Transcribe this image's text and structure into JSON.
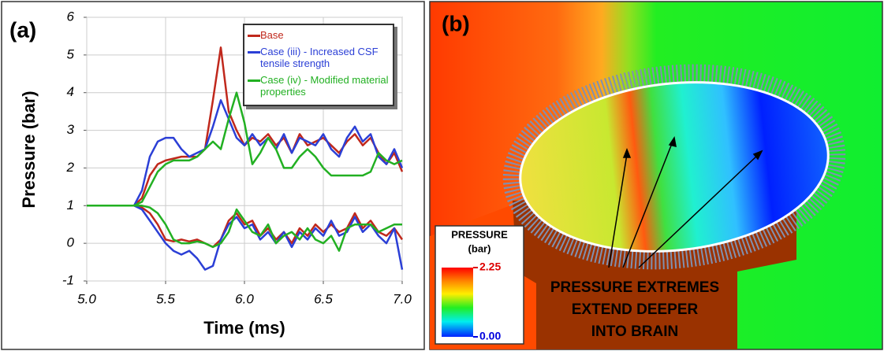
{
  "chart_data": {
    "type": "line",
    "panel_label": "(a)",
    "xlabel": "Time (ms)",
    "ylabel": "Pressure (bar)",
    "x": [
      5,
      5.05,
      5.1,
      5.15,
      5.2,
      5.25,
      5.3,
      5.35,
      5.4,
      5.45,
      5.5,
      5.55,
      5.6,
      5.65,
      5.7,
      5.75,
      5.8,
      5.85,
      5.9,
      5.95,
      6,
      6.05,
      6.1,
      6.15,
      6.2,
      6.25,
      6.3,
      6.35,
      6.4,
      6.45,
      6.5,
      6.55,
      6.6,
      6.65,
      6.7,
      6.75,
      6.8,
      6.85,
      6.9,
      6.95,
      7
    ],
    "xlim": [
      5,
      7
    ],
    "ylim": [
      -1,
      6
    ],
    "xticks": [
      {
        "value": 5,
        "label": "5.0"
      },
      {
        "value": 5.5,
        "label": "5.5"
      },
      {
        "value": 6,
        "label": "6.0"
      },
      {
        "value": 6.5,
        "label": "6.5"
      },
      {
        "value": 7,
        "label": "7.0"
      }
    ],
    "yticks": [
      -1,
      0,
      1,
      2,
      3,
      4,
      5,
      6
    ],
    "grid": true,
    "legend": "top-right",
    "series": [
      {
        "name": "Base",
        "color": "#c0281c",
        "values": [
          1,
          1,
          1,
          1,
          1,
          1,
          1,
          1.2,
          1.8,
          2.1,
          2.2,
          2.25,
          2.3,
          2.3,
          2.3,
          2.5,
          3.8,
          5.2,
          3.5,
          3.0,
          2.6,
          2.8,
          2.7,
          2.9,
          2.6,
          2.8,
          2.4,
          2.9,
          2.6,
          2.7,
          2.8,
          2.6,
          2.4,
          2.7,
          2.9,
          2.6,
          2.8,
          2.4,
          2.1,
          2.4,
          1.9
        ]
      },
      {
        "name": "Case (iii) - Increased CSF tensile strength",
        "color": "#2b3fd6",
        "values": [
          1,
          1,
          1,
          1,
          1,
          1,
          1,
          1.4,
          2.3,
          2.7,
          2.8,
          2.8,
          2.5,
          2.3,
          2.4,
          2.5,
          3.1,
          3.8,
          3.3,
          2.8,
          2.6,
          2.9,
          2.6,
          2.8,
          2.5,
          2.9,
          2.4,
          2.8,
          2.7,
          2.6,
          2.9,
          2.5,
          2.3,
          2.8,
          3.1,
          2.7,
          2.9,
          2.3,
          2.1,
          2.5,
          2.0
        ]
      },
      {
        "name": "Case (iv) - Modified material properties",
        "color": "#22b022",
        "values": [
          1,
          1,
          1,
          1,
          1,
          1,
          1,
          1.1,
          1.5,
          1.9,
          2.1,
          2.2,
          2.2,
          2.2,
          2.3,
          2.5,
          2.7,
          2.5,
          3.3,
          4.0,
          3.2,
          2.1,
          2.4,
          2.8,
          2.5,
          2.0,
          2.0,
          2.3,
          2.5,
          2.3,
          2.0,
          1.8,
          1.8,
          1.8,
          1.8,
          1.8,
          1.9,
          2.4,
          2.2,
          2.1,
          2.2
        ]
      },
      {
        "color": "#c0281c",
        "values": [
          1,
          1,
          1,
          1,
          1,
          1,
          1,
          0.95,
          0.8,
          0.5,
          0.1,
          0.05,
          0.1,
          0.05,
          0.1,
          0.0,
          -0.1,
          0.1,
          0.6,
          0.8,
          0.5,
          0.6,
          0.2,
          0.4,
          0.1,
          0.3,
          0.0,
          0.4,
          0.2,
          0.5,
          0.3,
          0.5,
          0.3,
          0.4,
          0.8,
          0.4,
          0.6,
          0.3,
          0.2,
          0.4,
          0.1
        ]
      },
      {
        "color": "#2b3fd6",
        "values": [
          1,
          1,
          1,
          1,
          1,
          1,
          1,
          0.9,
          0.6,
          0.3,
          0.0,
          -0.2,
          -0.3,
          -0.2,
          -0.4,
          -0.7,
          -0.6,
          0.1,
          0.5,
          0.7,
          0.4,
          0.5,
          0.1,
          0.3,
          0.0,
          0.3,
          -0.1,
          0.3,
          0.1,
          0.4,
          0.2,
          0.6,
          0.2,
          0.3,
          0.7,
          0.3,
          0.5,
          0.2,
          0.0,
          0.4,
          -0.7
        ]
      },
      {
        "color": "#22b022",
        "values": [
          1,
          1,
          1,
          1,
          1,
          1,
          1,
          1.0,
          0.95,
          0.8,
          0.5,
          0.1,
          0.0,
          0.0,
          0.05,
          0.0,
          -0.1,
          0.0,
          0.3,
          0.9,
          0.6,
          0.3,
          0.2,
          0.5,
          0.0,
          0.2,
          0.3,
          0.1,
          0.4,
          0.1,
          0.0,
          0.2,
          -0.2,
          0.4,
          0.5,
          0.5,
          0.5,
          0.3,
          0.4,
          0.5,
          0.5
        ]
      }
    ]
  },
  "panel_b": {
    "panel_label": "(b)",
    "colorbar_title": "PRESSURE",
    "colorbar_unit": "(bar)",
    "colorbar_max": "2.25",
    "colorbar_min": "0.00",
    "annotation_lines": [
      "PRESSURE EXTREMES",
      "EXTEND DEEPER",
      "INTO BRAIN"
    ]
  }
}
